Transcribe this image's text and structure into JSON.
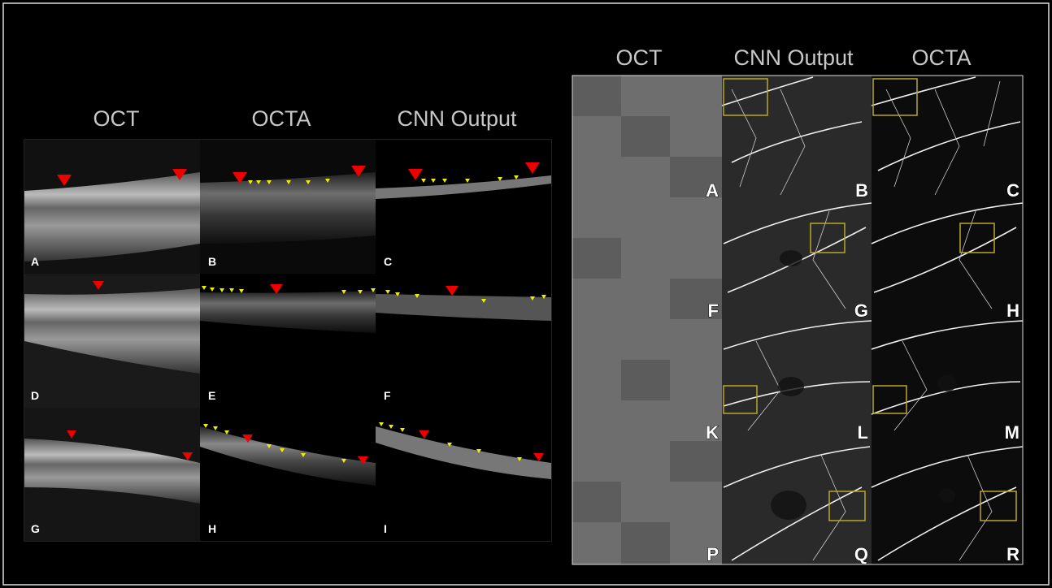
{
  "left_figure": {
    "column_headers": [
      "OCT",
      "OCTA",
      "CNN Output"
    ],
    "panel_labels": [
      "A",
      "B",
      "C",
      "D",
      "E",
      "F",
      "G",
      "H",
      "I"
    ]
  },
  "right_figure": {
    "column_headers": [
      "OCT",
      "CNN Output",
      "OCTA"
    ],
    "panel_labels": [
      "A",
      "B",
      "C",
      "F",
      "G",
      "H",
      "K",
      "L",
      "M",
      "P",
      "Q",
      "R"
    ]
  }
}
